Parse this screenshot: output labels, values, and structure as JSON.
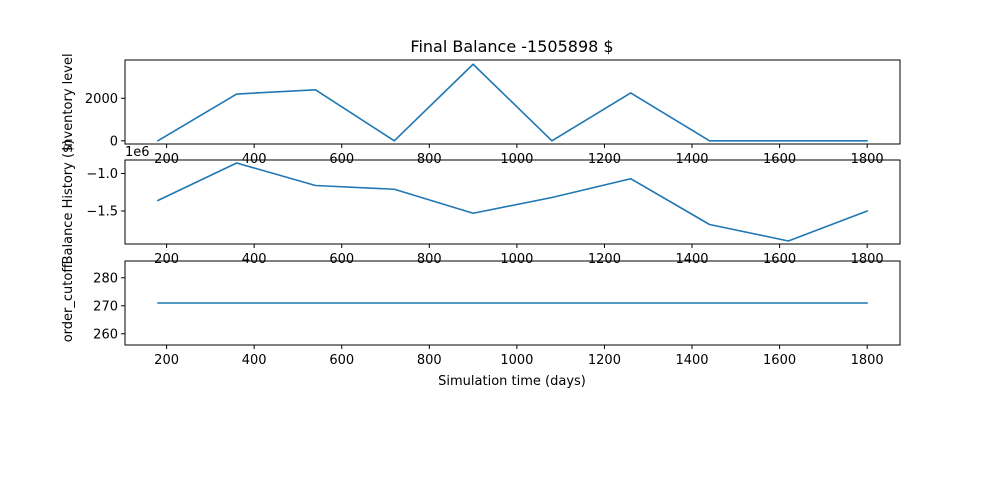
{
  "chart_data": {
    "type": "line",
    "title": "Final Balance -1505898 $",
    "xlabel": "Simulation time (days)",
    "panels": [
      {
        "ylabel": "Inventory level",
        "x": [
          180,
          360,
          540,
          720,
          900,
          1080,
          1260,
          1440,
          1620,
          1800
        ],
        "y": [
          0,
          2200,
          2400,
          0,
          3600,
          0,
          2250,
          0,
          0,
          0
        ],
        "xlim": [
          105,
          1875
        ],
        "ylim": [
          -150,
          3800
        ],
        "xticks": [
          200,
          400,
          600,
          800,
          1000,
          1200,
          1400,
          1600,
          1800
        ],
        "yticks": [
          0,
          2000
        ],
        "ytick_labels": [
          "0",
          "2000"
        ]
      },
      {
        "ylabel": "Balance History ($)",
        "offset_label": "1e6",
        "x": [
          180,
          360,
          540,
          720,
          900,
          1080,
          1260,
          1440,
          1620,
          1800
        ],
        "y": [
          -1.36,
          -0.86,
          -1.16,
          -1.21,
          -1.53,
          -1.32,
          -1.07,
          -1.68,
          -1.9,
          -1.5
        ],
        "xlim": [
          105,
          1875
        ],
        "ylim": [
          -1.94,
          -0.82
        ],
        "xticks": [
          200,
          400,
          600,
          800,
          1000,
          1200,
          1400,
          1600,
          1800
        ],
        "yticks": [
          -1.0,
          -1.5
        ],
        "ytick_labels": [
          "−1.0",
          "−1.5"
        ]
      },
      {
        "ylabel": "order_cutoff",
        "x": [
          180,
          360,
          540,
          720,
          900,
          1080,
          1260,
          1440,
          1620,
          1800
        ],
        "y": [
          271,
          271,
          271,
          271,
          271,
          271,
          271,
          271,
          271,
          271
        ],
        "xlim": [
          105,
          1875
        ],
        "ylim": [
          256,
          286
        ],
        "xticks": [
          200,
          400,
          600,
          800,
          1000,
          1200,
          1400,
          1600,
          1800
        ],
        "yticks": [
          260,
          270,
          280
        ],
        "ytick_labels": [
          "260",
          "270",
          "280"
        ]
      }
    ],
    "line_color": "#1f77b4",
    "grid": false,
    "legend": "none"
  }
}
